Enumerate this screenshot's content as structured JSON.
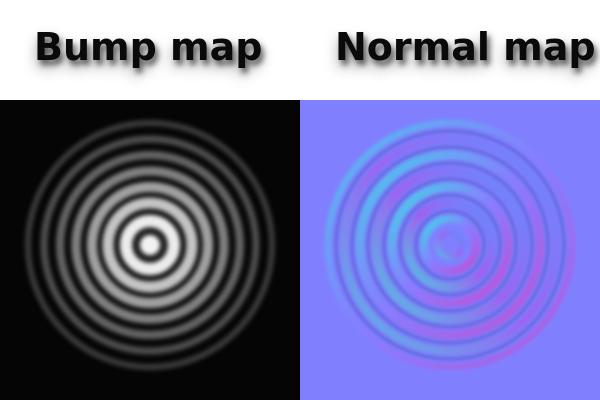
{
  "titles": {
    "bump": "Bump map",
    "normal": "Normal map"
  },
  "colors": {
    "bump_background": "#050505",
    "normal_background": "#8080ff",
    "title_text": "#0a0a0a"
  }
}
